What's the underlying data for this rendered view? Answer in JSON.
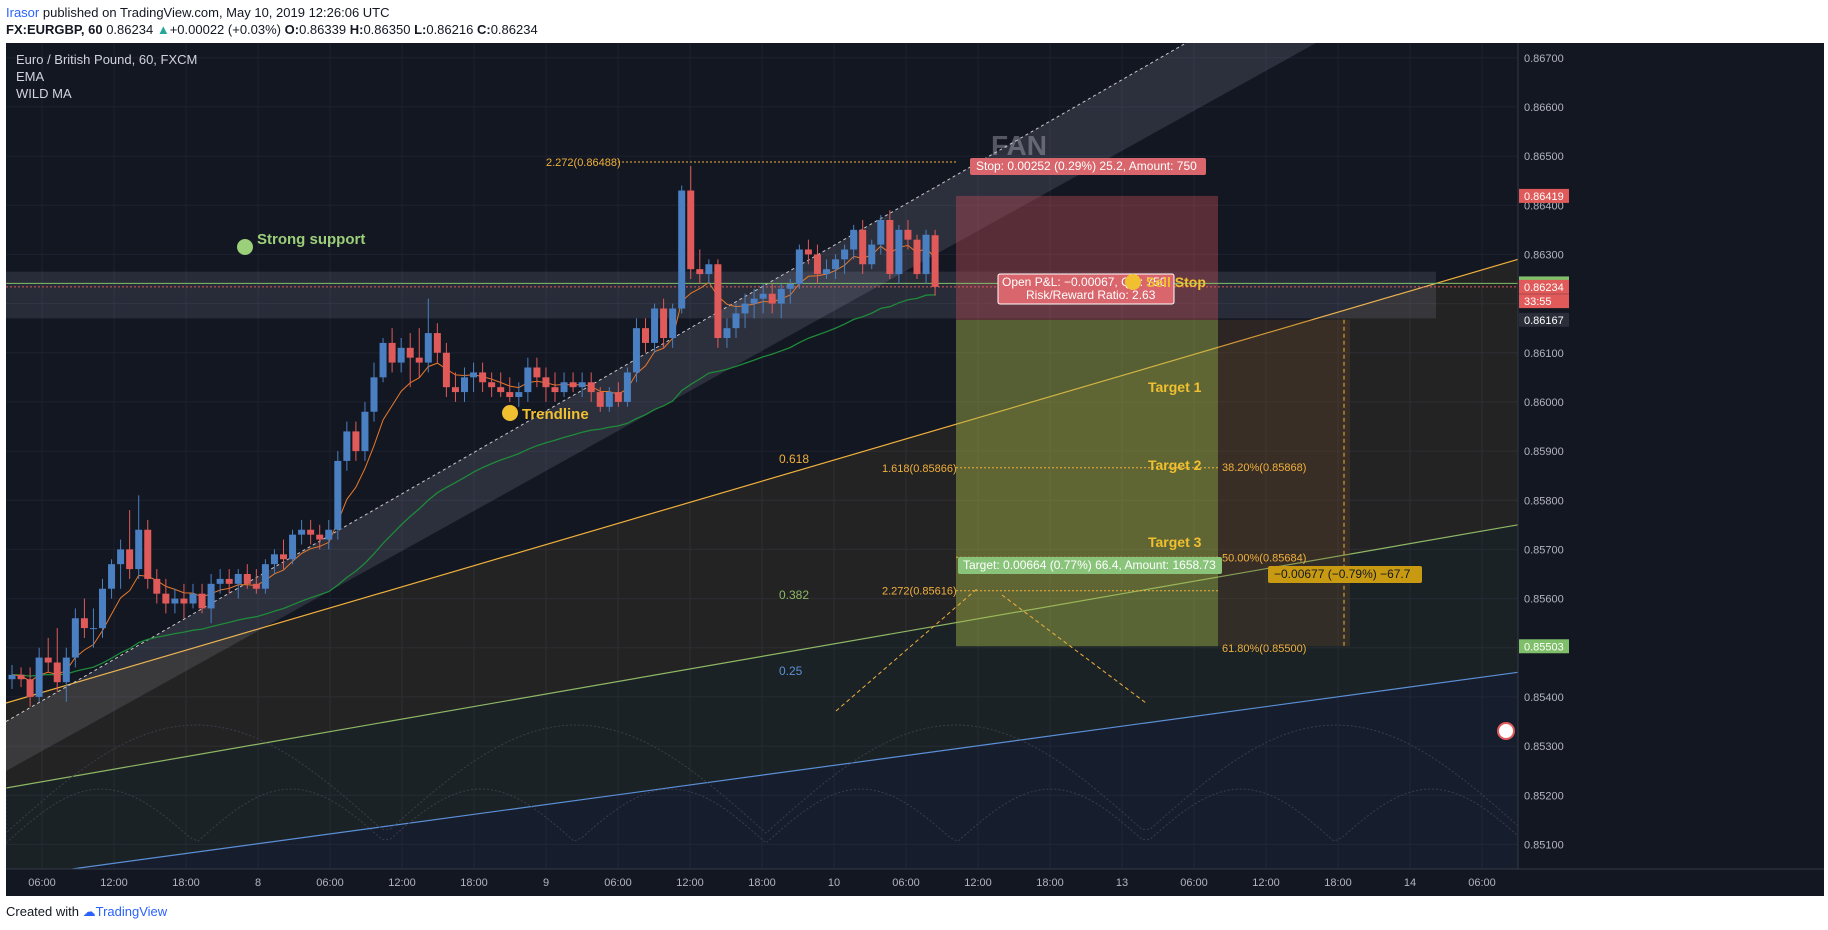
{
  "header": {
    "author": "Irasor",
    "published": "published on TradingView.com, May 10, 2019 12:26:06 UTC",
    "symbol": "FX:EURGBP, 60",
    "price": "0.86234",
    "change_arrow": "▲",
    "change": "+0.00022 (+0.03%)",
    "open_label": "O:",
    "open": "0.86339",
    "high_label": "H:",
    "high": "0.86350",
    "low_label": "L:",
    "low": "0.86216",
    "close_label": "C:",
    "close": "0.86234"
  },
  "legend": {
    "title": "Euro / British Pound, 60, FXCM",
    "ind1": "EMA",
    "ind2": "WILD MA"
  },
  "footer": {
    "created": "Created with",
    "brand": "TradingView"
  },
  "colors": {
    "background": "#131722",
    "up": "#4a7fc1",
    "down": "#e05a5a",
    "ema": "#e8792b",
    "wild_ma": "#1f8a3a",
    "orange_line": "#f0b03c",
    "green_line": "#8fb865",
    "blue_line": "#5b8fd6",
    "stop_zone": "#b04a55",
    "target_zone": "#a8b84a"
  },
  "chart_data": {
    "type": "candlestick",
    "ylim": [
      0.8505,
      0.8673
    ],
    "y_ticks": [
      "0.86700",
      "0.86600",
      "0.86500",
      "0.86400",
      "0.86300",
      "0.86200",
      "0.86100",
      "0.86000",
      "0.85900",
      "0.85800",
      "0.85700",
      "0.85600",
      "0.85500",
      "0.85400",
      "0.85300",
      "0.85200",
      "0.85100"
    ],
    "x_ticks": [
      "06:00",
      "12:00",
      "18:00",
      "8",
      "06:00",
      "12:00",
      "18:00",
      "9",
      "06:00",
      "12:00",
      "18:00",
      "10",
      "06:00",
      "12:00",
      "18:00",
      "13",
      "06:00",
      "12:00",
      "18:00",
      "14",
      "06:00"
    ],
    "candles": [
      {
        "o": 0.85436,
        "h": 0.85465,
        "l": 0.85416,
        "c": 0.85445
      },
      {
        "o": 0.85445,
        "h": 0.8546,
        "l": 0.8542,
        "c": 0.85436
      },
      {
        "o": 0.85436,
        "h": 0.8546,
        "l": 0.8538,
        "c": 0.854
      },
      {
        "o": 0.854,
        "h": 0.855,
        "l": 0.8539,
        "c": 0.8548
      },
      {
        "o": 0.8548,
        "h": 0.8552,
        "l": 0.8545,
        "c": 0.8547
      },
      {
        "o": 0.8547,
        "h": 0.8554,
        "l": 0.8541,
        "c": 0.8543
      },
      {
        "o": 0.8543,
        "h": 0.855,
        "l": 0.8539,
        "c": 0.8548
      },
      {
        "o": 0.8548,
        "h": 0.8558,
        "l": 0.8546,
        "c": 0.8556
      },
      {
        "o": 0.8556,
        "h": 0.856,
        "l": 0.8552,
        "c": 0.8554
      },
      {
        "o": 0.8554,
        "h": 0.8558,
        "l": 0.855,
        "c": 0.8554
      },
      {
        "o": 0.8554,
        "h": 0.8564,
        "l": 0.8552,
        "c": 0.8562
      },
      {
        "o": 0.8562,
        "h": 0.8568,
        "l": 0.856,
        "c": 0.8567
      },
      {
        "o": 0.8567,
        "h": 0.8572,
        "l": 0.8562,
        "c": 0.857
      },
      {
        "o": 0.857,
        "h": 0.8578,
        "l": 0.8564,
        "c": 0.8566
      },
      {
        "o": 0.8566,
        "h": 0.8581,
        "l": 0.8564,
        "c": 0.8574
      },
      {
        "o": 0.8574,
        "h": 0.8576,
        "l": 0.8562,
        "c": 0.8564
      },
      {
        "o": 0.8564,
        "h": 0.8566,
        "l": 0.8559,
        "c": 0.8561
      },
      {
        "o": 0.8561,
        "h": 0.8564,
        "l": 0.8557,
        "c": 0.8559
      },
      {
        "o": 0.8559,
        "h": 0.8562,
        "l": 0.8557,
        "c": 0.856
      },
      {
        "o": 0.856,
        "h": 0.8563,
        "l": 0.8556,
        "c": 0.8559
      },
      {
        "o": 0.8559,
        "h": 0.8563,
        "l": 0.8558,
        "c": 0.8561
      },
      {
        "o": 0.8561,
        "h": 0.8563,
        "l": 0.8557,
        "c": 0.8558
      },
      {
        "o": 0.8558,
        "h": 0.8565,
        "l": 0.8555,
        "c": 0.8563
      },
      {
        "o": 0.8563,
        "h": 0.8566,
        "l": 0.8561,
        "c": 0.8564
      },
      {
        "o": 0.8564,
        "h": 0.8566,
        "l": 0.8561,
        "c": 0.8563
      },
      {
        "o": 0.8563,
        "h": 0.8566,
        "l": 0.856,
        "c": 0.8565
      },
      {
        "o": 0.8565,
        "h": 0.8567,
        "l": 0.8562,
        "c": 0.8563
      },
      {
        "o": 0.8563,
        "h": 0.8566,
        "l": 0.8561,
        "c": 0.8562
      },
      {
        "o": 0.8562,
        "h": 0.8568,
        "l": 0.8561,
        "c": 0.8567
      },
      {
        "o": 0.8567,
        "h": 0.857,
        "l": 0.8565,
        "c": 0.8569
      },
      {
        "o": 0.8569,
        "h": 0.8572,
        "l": 0.8566,
        "c": 0.8568
      },
      {
        "o": 0.8568,
        "h": 0.8574,
        "l": 0.8567,
        "c": 0.8573
      },
      {
        "o": 0.8573,
        "h": 0.8576,
        "l": 0.8571,
        "c": 0.8574
      },
      {
        "o": 0.8574,
        "h": 0.8576,
        "l": 0.8571,
        "c": 0.8573
      },
      {
        "o": 0.8573,
        "h": 0.8575,
        "l": 0.857,
        "c": 0.8572
      },
      {
        "o": 0.8572,
        "h": 0.8576,
        "l": 0.857,
        "c": 0.8574
      },
      {
        "o": 0.8574,
        "h": 0.859,
        "l": 0.8572,
        "c": 0.8588
      },
      {
        "o": 0.8588,
        "h": 0.8596,
        "l": 0.8586,
        "c": 0.8594
      },
      {
        "o": 0.8594,
        "h": 0.8596,
        "l": 0.8588,
        "c": 0.859
      },
      {
        "o": 0.859,
        "h": 0.86,
        "l": 0.8588,
        "c": 0.8598
      },
      {
        "o": 0.8598,
        "h": 0.8608,
        "l": 0.8596,
        "c": 0.8605
      },
      {
        "o": 0.8605,
        "h": 0.8613,
        "l": 0.8604,
        "c": 0.8612
      },
      {
        "o": 0.8612,
        "h": 0.8615,
        "l": 0.8606,
        "c": 0.8608
      },
      {
        "o": 0.8608,
        "h": 0.8613,
        "l": 0.8606,
        "c": 0.8611
      },
      {
        "o": 0.8611,
        "h": 0.8614,
        "l": 0.8603,
        "c": 0.8609
      },
      {
        "o": 0.8609,
        "h": 0.8615,
        "l": 0.8605,
        "c": 0.8608
      },
      {
        "o": 0.8608,
        "h": 0.8621,
        "l": 0.8606,
        "c": 0.8614
      },
      {
        "o": 0.8614,
        "h": 0.8616,
        "l": 0.8608,
        "c": 0.861
      },
      {
        "o": 0.861,
        "h": 0.8612,
        "l": 0.8601,
        "c": 0.8603
      },
      {
        "o": 0.8603,
        "h": 0.8606,
        "l": 0.86,
        "c": 0.8602
      },
      {
        "o": 0.8602,
        "h": 0.8607,
        "l": 0.86,
        "c": 0.8605
      },
      {
        "o": 0.8605,
        "h": 0.8608,
        "l": 0.8602,
        "c": 0.8606
      },
      {
        "o": 0.8606,
        "h": 0.8608,
        "l": 0.8602,
        "c": 0.8604
      },
      {
        "o": 0.8604,
        "h": 0.8606,
        "l": 0.8601,
        "c": 0.8603
      },
      {
        "o": 0.8603,
        "h": 0.8606,
        "l": 0.8601,
        "c": 0.8602
      },
      {
        "o": 0.8602,
        "h": 0.8605,
        "l": 0.86,
        "c": 0.8601
      },
      {
        "o": 0.8601,
        "h": 0.8604,
        "l": 0.8599,
        "c": 0.8602
      },
      {
        "o": 0.8602,
        "h": 0.8609,
        "l": 0.86,
        "c": 0.8607
      },
      {
        "o": 0.8607,
        "h": 0.8609,
        "l": 0.8603,
        "c": 0.8605
      },
      {
        "o": 0.8605,
        "h": 0.8607,
        "l": 0.86,
        "c": 0.8603
      },
      {
        "o": 0.8603,
        "h": 0.8606,
        "l": 0.86,
        "c": 0.8602
      },
      {
        "o": 0.8602,
        "h": 0.8606,
        "l": 0.8601,
        "c": 0.8604
      },
      {
        "o": 0.8604,
        "h": 0.8606,
        "l": 0.8602,
        "c": 0.8603
      },
      {
        "o": 0.8603,
        "h": 0.8606,
        "l": 0.8601,
        "c": 0.8604
      },
      {
        "o": 0.8604,
        "h": 0.8606,
        "l": 0.86,
        "c": 0.8602
      },
      {
        "o": 0.8602,
        "h": 0.8603,
        "l": 0.8598,
        "c": 0.8599
      },
      {
        "o": 0.8599,
        "h": 0.8603,
        "l": 0.8598,
        "c": 0.8602
      },
      {
        "o": 0.8602,
        "h": 0.8604,
        "l": 0.8599,
        "c": 0.86
      },
      {
        "o": 0.86,
        "h": 0.8607,
        "l": 0.8599,
        "c": 0.8606
      },
      {
        "o": 0.8606,
        "h": 0.8617,
        "l": 0.8604,
        "c": 0.8615
      },
      {
        "o": 0.8615,
        "h": 0.8617,
        "l": 0.861,
        "c": 0.8612
      },
      {
        "o": 0.8612,
        "h": 0.862,
        "l": 0.861,
        "c": 0.8619
      },
      {
        "o": 0.8619,
        "h": 0.8621,
        "l": 0.8611,
        "c": 0.8613
      },
      {
        "o": 0.8613,
        "h": 0.862,
        "l": 0.8611,
        "c": 0.8619
      },
      {
        "o": 0.8619,
        "h": 0.8644,
        "l": 0.8618,
        "c": 0.8643
      },
      {
        "o": 0.8643,
        "h": 0.8648,
        "l": 0.8625,
        "c": 0.8627
      },
      {
        "o": 0.8627,
        "h": 0.8631,
        "l": 0.8624,
        "c": 0.8626
      },
      {
        "o": 0.8626,
        "h": 0.8629,
        "l": 0.8624,
        "c": 0.8628
      },
      {
        "o": 0.8628,
        "h": 0.8629,
        "l": 0.8611,
        "c": 0.8613
      },
      {
        "o": 0.8613,
        "h": 0.8617,
        "l": 0.8611,
        "c": 0.8615
      },
      {
        "o": 0.8615,
        "h": 0.862,
        "l": 0.8613,
        "c": 0.8618
      },
      {
        "o": 0.8618,
        "h": 0.8622,
        "l": 0.8615,
        "c": 0.862
      },
      {
        "o": 0.862,
        "h": 0.8623,
        "l": 0.8617,
        "c": 0.8621
      },
      {
        "o": 0.8621,
        "h": 0.8624,
        "l": 0.8618,
        "c": 0.8622
      },
      {
        "o": 0.8622,
        "h": 0.8624,
        "l": 0.8618,
        "c": 0.862
      },
      {
        "o": 0.862,
        "h": 0.8624,
        "l": 0.8617,
        "c": 0.8623
      },
      {
        "o": 0.8623,
        "h": 0.8625,
        "l": 0.862,
        "c": 0.8624
      },
      {
        "o": 0.8624,
        "h": 0.8632,
        "l": 0.8623,
        "c": 0.8631
      },
      {
        "o": 0.8631,
        "h": 0.8633,
        "l": 0.8628,
        "c": 0.863
      },
      {
        "o": 0.863,
        "h": 0.8632,
        "l": 0.8624,
        "c": 0.8626
      },
      {
        "o": 0.8626,
        "h": 0.8629,
        "l": 0.8625,
        "c": 0.8627
      },
      {
        "o": 0.8627,
        "h": 0.863,
        "l": 0.8625,
        "c": 0.8629
      },
      {
        "o": 0.8629,
        "h": 0.8632,
        "l": 0.8626,
        "c": 0.8631
      },
      {
        "o": 0.8631,
        "h": 0.8636,
        "l": 0.8629,
        "c": 0.8635
      },
      {
        "o": 0.8635,
        "h": 0.8637,
        "l": 0.8626,
        "c": 0.8628
      },
      {
        "o": 0.8628,
        "h": 0.8633,
        "l": 0.8627,
        "c": 0.8632
      },
      {
        "o": 0.8632,
        "h": 0.8638,
        "l": 0.863,
        "c": 0.8637
      },
      {
        "o": 0.8637,
        "h": 0.8639,
        "l": 0.8625,
        "c": 0.8626
      },
      {
        "o": 0.8626,
        "h": 0.8636,
        "l": 0.8624,
        "c": 0.8635
      },
      {
        "o": 0.8635,
        "h": 0.8637,
        "l": 0.8631,
        "c": 0.8633
      },
      {
        "o": 0.8633,
        "h": 0.8634,
        "l": 0.8625,
        "c": 0.8626
      },
      {
        "o": 0.8626,
        "h": 0.8635,
        "l": 0.8624,
        "c": 0.8634
      },
      {
        "o": 0.86339,
        "h": 0.8635,
        "l": 0.86216,
        "c": 0.86234
      }
    ],
    "price_labels": [
      {
        "value": 0.86419,
        "text": "0.86419",
        "color": "#e05a5a"
      },
      {
        "value": 0.86241,
        "text": "0.86241",
        "color": "#7fbf6a"
      },
      {
        "value": 0.86234,
        "text": "0.86234",
        "color": "#e05a5a"
      },
      {
        "value": 0.86205,
        "text": "33:55",
        "color": "#e05a5a"
      },
      {
        "value": 0.86167,
        "text": "0.86167",
        "color": "#2a2e39"
      },
      {
        "value": 0.85503,
        "text": "0.85503",
        "color": "#7fbf6a"
      }
    ],
    "fib_labels": [
      {
        "value": 0.86488,
        "text": "2.272(0.86488)"
      },
      {
        "value": 0.85866,
        "text": "1.618(0.85866)"
      },
      {
        "value": 0.85616,
        "text": "2.272(0.85616)"
      },
      {
        "value": 0.85868,
        "text": "38.20%(0.85868)"
      },
      {
        "value": 0.85684,
        "text": "50.00%(0.85684)"
      },
      {
        "value": 0.855,
        "text": "61.80%(0.85500)"
      }
    ],
    "fan_levels": [
      "0.618",
      "0.382",
      "0.25"
    ],
    "fan_title": "FAN",
    "annotations": {
      "strong_support": "Strong support",
      "trendline": "Trendline",
      "sell_stop": "Sell Stop",
      "target1": "Target 1",
      "target2": "Target 2",
      "target3": "Target 3"
    },
    "position": {
      "entry": 0.86167,
      "stop": 0.86419,
      "target": 0.85503,
      "stop_label": "Stop: 0.00252 (0.29%) 25.2, Amount: 750",
      "target_label": "Target: 0.00664 (0.77%) 66.4, Amount: 1658.73",
      "pnl_label": "Open P&L: −0.00067, Qty: 750",
      "rr_label": "Risk/Reward Ratio: 2.63"
    },
    "range_label": "−0.00677 (−0.79%) −67.7"
  }
}
